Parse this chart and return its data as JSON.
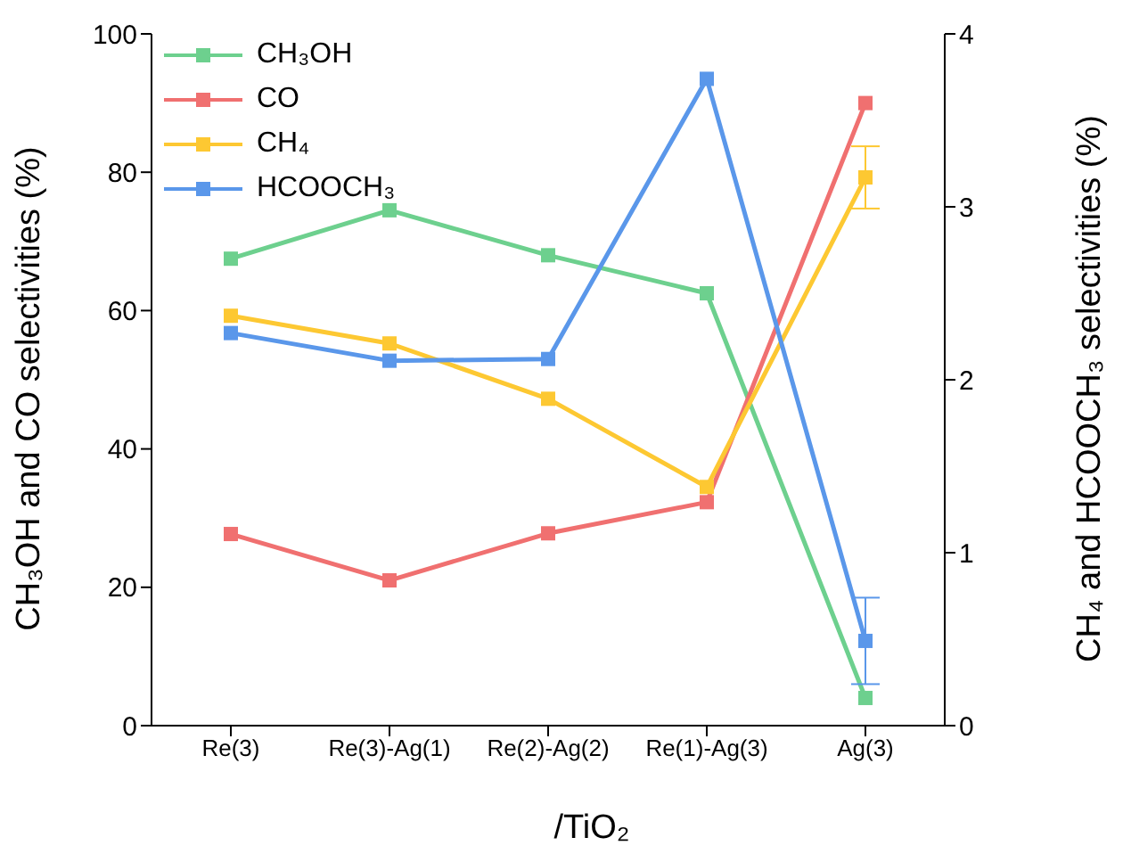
{
  "chart_data": {
    "type": "line",
    "xlabel": "/TiO₂",
    "ylabel": "CH₃OH and CO selectivities (%)",
    "y2label": "CH₄ and HCOOCH₃ selectivities (%)",
    "categories": [
      "Re(3)",
      "Re(3)-Ag(1)",
      "Re(2)-Ag(2)",
      "Re(1)-Ag(3)",
      "Ag(3)"
    ],
    "series": [
      {
        "name": "CH₃OH",
        "color": "#6dd08e",
        "values": [
          67.5,
          74.5,
          68,
          62.5,
          4
        ]
      },
      {
        "name": "CO",
        "color": "#f07070",
        "values": [
          27.7,
          21,
          27.8,
          32.3,
          90
        ]
      },
      {
        "name": "CH₄",
        "color": "#fdc832",
        "axis": "y2",
        "values": [
          2.37,
          2.21,
          1.89,
          1.38,
          3.17
        ],
        "errors": [
          null,
          null,
          null,
          null,
          0.18
        ]
      },
      {
        "name": "HCOOCH₃",
        "color": "#5a97ea",
        "axis": "y2",
        "values": [
          2.27,
          2.11,
          2.12,
          3.74,
          0.49
        ],
        "errors": [
          null,
          null,
          null,
          null,
          0.25
        ]
      }
    ],
    "ylim": [
      0,
      100
    ],
    "yticks": [
      0,
      20,
      40,
      60,
      80,
      100
    ],
    "y2lim": [
      0,
      4
    ],
    "y2ticks": [
      0,
      1,
      2,
      3,
      4
    ],
    "grid": false,
    "legend": "top left",
    "marker": "square",
    "line_style": "solid"
  }
}
